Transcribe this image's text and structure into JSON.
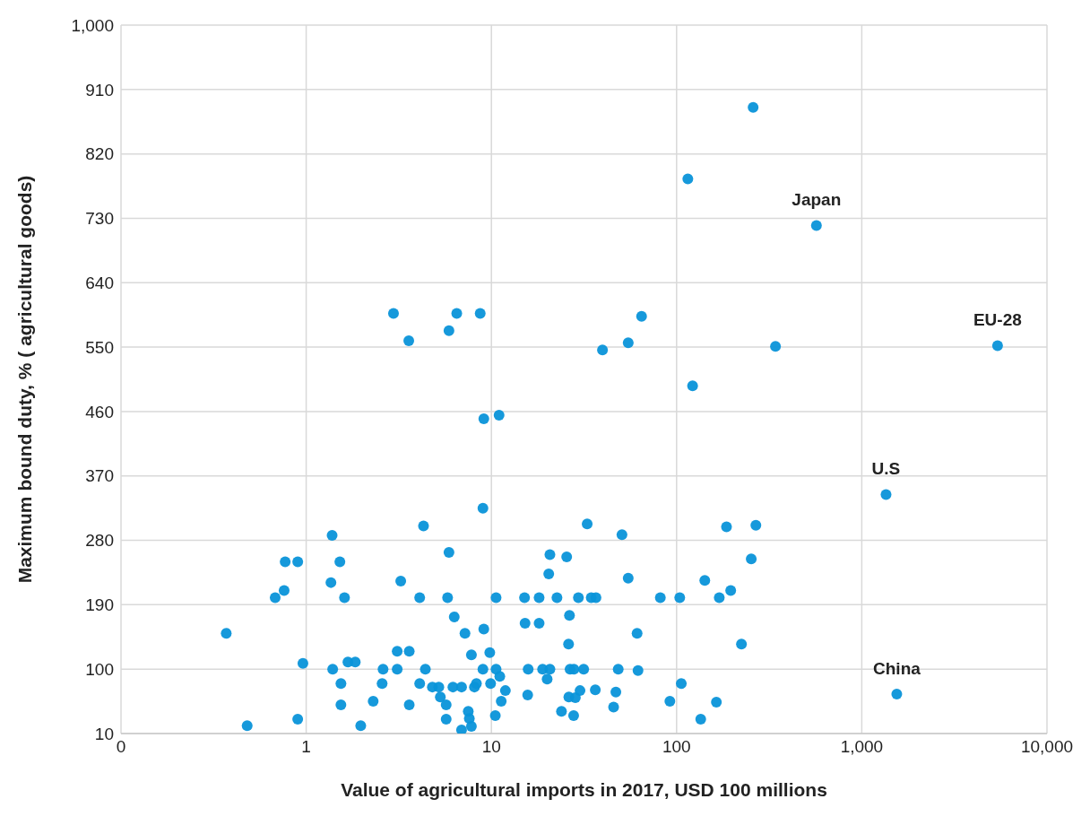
{
  "chart_data": {
    "type": "scatter",
    "xlabel": "Value of agricultural imports in 2017, USD 100 millions",
    "ylabel": "Maximum bound duty, % ( agricultural goods)",
    "log": "x",
    "grid": true,
    "marker": "circle",
    "xlim": [
      0.1,
      10000
    ],
    "xticks": [
      {
        "value": 0.1,
        "label": "0"
      },
      1,
      10,
      100,
      {
        "value": 1000,
        "label": "1,000"
      },
      {
        "value": 10000,
        "label": "10,000"
      }
    ],
    "ylim": [
      10,
      1000
    ],
    "yticks": [
      10,
      100,
      190,
      280,
      370,
      460,
      550,
      640,
      730,
      820,
      910,
      {
        "value": 1000,
        "label": "1,000"
      }
    ],
    "annotations": [
      {
        "text": "Japan",
        "x": 569,
        "y": 720
      },
      {
        "text": "EU-28",
        "x": 5410,
        "y": 552
      },
      {
        "text": "U.S",
        "x": 1352,
        "y": 344
      },
      {
        "text": "China",
        "x": 1545,
        "y": 65
      }
    ],
    "series": [
      {
        "color": "#0a93d9",
        "x": [
          0.37,
          0.48,
          0.68,
          0.76,
          0.77,
          0.9,
          0.9,
          0.96,
          1.38,
          1.36,
          1.39,
          1.52,
          1.54,
          1.54,
          1.61,
          1.68,
          1.84,
          1.97,
          2.3,
          2.57,
          2.6,
          4.3,
          5.9,
          3.24,
          4.1,
          5.8,
          10.6,
          9.0,
          6.3,
          7.2,
          9.1,
          3.1,
          3.6,
          7.8,
          9.8,
          3.1,
          4.4,
          9.0,
          10.6,
          11.1,
          4.1,
          4.8,
          5.2,
          6.2,
          6.9,
          8.1,
          8.3,
          9.9,
          11.9,
          5.3,
          11.3,
          3.6,
          5.7,
          7.5,
          7.6,
          7.8,
          6.9,
          5.7,
          10.5,
          32.9,
          50.7,
          186,
          268,
          20.7,
          25.5,
          253,
          20.4,
          54.8,
          142,
          196,
          170,
          15.1,
          18.1,
          22.6,
          29.5,
          34.6,
          36.7,
          81.7,
          104,
          15.2,
          18.1,
          26.4,
          61.2,
          26.1,
          224,
          15.8,
          18.9,
          20.7,
          26.6,
          27.9,
          31.5,
          48.4,
          61.9,
          20,
          106,
          15.7,
          26.2,
          28.4,
          30.1,
          36.4,
          47,
          45.7,
          92,
          164,
          135,
          23.9,
          27.8,
          2.96,
          6.5,
          8.7,
          5.9,
          3.58,
          9.1,
          11,
          259,
          115,
          569,
          64.7,
          54.8,
          39.8,
          342,
          5410,
          122,
          1352,
          1545
        ],
        "values": [
          150,
          21,
          200,
          210,
          250,
          250,
          30,
          108,
          287,
          221,
          100,
          250,
          80,
          50,
          200,
          110,
          110,
          21,
          55,
          80,
          100,
          300,
          263,
          223,
          200,
          200,
          200,
          325,
          173,
          150,
          156,
          125,
          125,
          120,
          123,
          100,
          100,
          100,
          100,
          90,
          80,
          75,
          75,
          75,
          75,
          75,
          80,
          80,
          70,
          61,
          55,
          50,
          50,
          41,
          31,
          20,
          15,
          30,
          35,
          303,
          288,
          299,
          301,
          260,
          257,
          254,
          233,
          227,
          224,
          210,
          200,
          200,
          200,
          200,
          200,
          200,
          200,
          200,
          200,
          164,
          164,
          175,
          150,
          135,
          135,
          100,
          100,
          100,
          100,
          100,
          100,
          100,
          98,
          86,
          80,
          64,
          61,
          60,
          70,
          71,
          68,
          47,
          55,
          54,
          30,
          41,
          35,
          597,
          597,
          597,
          573,
          559,
          450,
          455,
          885,
          785,
          720,
          593,
          556,
          546,
          551,
          552,
          496,
          344,
          65
        ]
      }
    ]
  }
}
